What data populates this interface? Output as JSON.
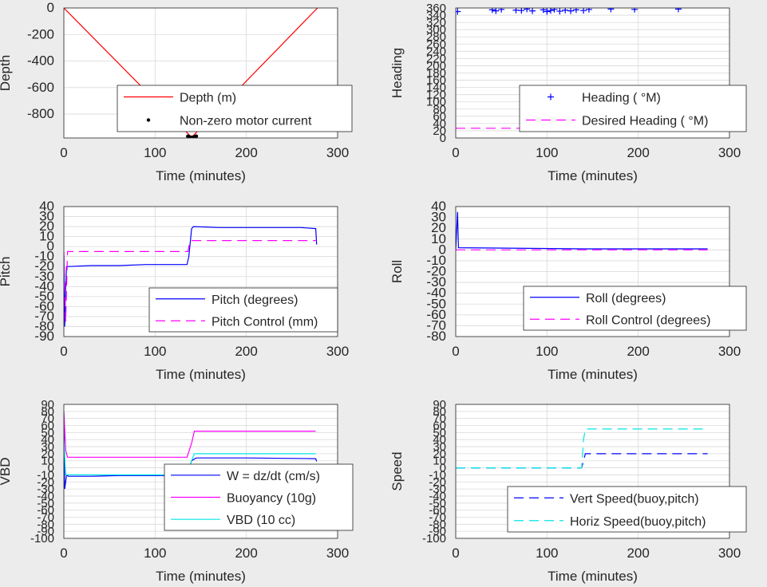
{
  "colors": {
    "figure_bg": "#ececec",
    "axes_bg": "#ffffff",
    "grid": "#d9d9d9",
    "text": "#262626"
  },
  "chart_data": [
    {
      "id": "depth",
      "type": "line",
      "ylabel": "Depth",
      "xlabel": "Time (minutes)",
      "xlim": [
        0,
        300
      ],
      "ylim": [
        -980,
        0
      ],
      "xticks": [
        0,
        100,
        200,
        300
      ],
      "yticks": [
        0,
        -200,
        -400,
        -600,
        -800
      ],
      "legend": "center-bottom",
      "series": [
        {
          "name": "Depth (m)",
          "color": "#ff0000",
          "style": "solid",
          "x": [
            0,
            140,
            278
          ],
          "y": [
            0,
            -975,
            0
          ]
        },
        {
          "name": "Non-zero motor current",
          "color": "#000000",
          "style": "dots",
          "x": [
            136,
            137,
            138,
            139,
            140,
            141,
            142,
            143,
            144,
            145
          ],
          "y": [
            -968,
            -972,
            -975,
            -978,
            -976,
            -979,
            -974,
            -977,
            -971,
            -967
          ]
        }
      ]
    },
    {
      "id": "heading",
      "type": "line",
      "ylabel": "Heading",
      "xlabel": "Time (minutes)",
      "xlim": [
        0,
        300
      ],
      "ylim": [
        0,
        360
      ],
      "xticks": [
        0,
        100,
        200,
        300
      ],
      "yticks": [
        0,
        20,
        40,
        60,
        80,
        100,
        120,
        140,
        160,
        180,
        200,
        220,
        240,
        260,
        280,
        300,
        320,
        340,
        360
      ],
      "legend": "center-right",
      "series": [
        {
          "name": "Heading (  °M)",
          "color": "#0000ff",
          "style": "plus",
          "x": [
            2,
            40,
            44,
            50,
            66,
            72,
            78,
            84,
            96,
            100,
            104,
            108,
            114,
            120,
            126,
            132,
            140,
            146,
            170,
            196,
            244
          ],
          "y": [
            350,
            355,
            352,
            356,
            354,
            353,
            357,
            352,
            355,
            350,
            353,
            356,
            351,
            354,
            352,
            355,
            353,
            356,
            357,
            356,
            357
          ]
        },
        {
          "name": "Desired Heading (  °M)",
          "color": "#ff00ff",
          "style": "dashed",
          "x": [
            0,
            278
          ],
          "y": [
            27,
            27
          ]
        }
      ]
    },
    {
      "id": "pitch",
      "type": "line",
      "ylabel": "Pitch",
      "xlabel": "Time (minutes)",
      "xlim": [
        0,
        300
      ],
      "ylim": [
        -90,
        40
      ],
      "xticks": [
        0,
        100,
        200,
        300
      ],
      "yticks": [
        40,
        30,
        20,
        10,
        0,
        -10,
        -20,
        -30,
        -40,
        -50,
        -60,
        -70,
        -80,
        -90
      ],
      "legend": "center-bottom",
      "series": [
        {
          "name": "Pitch (degrees)",
          "color": "#0000ff",
          "style": "solid",
          "x": [
            0,
            1,
            2,
            3,
            5,
            30,
            60,
            90,
            120,
            135,
            137,
            140,
            142,
            170,
            200,
            230,
            260,
            276,
            277
          ],
          "y": [
            -10,
            -80,
            -40,
            -20,
            -20,
            -19,
            -19,
            -18,
            -18,
            -18,
            -10,
            18,
            20,
            19,
            19,
            19,
            19,
            18,
            2
          ]
        },
        {
          "name": "Pitch Control (mm)",
          "color": "#ff00ff",
          "style": "dashed",
          "x": [
            0,
            2,
            4,
            10,
            136,
            138,
            140,
            276
          ],
          "y": [
            -5,
            -75,
            -5,
            -5,
            -5,
            5,
            6,
            6
          ]
        }
      ]
    },
    {
      "id": "roll",
      "type": "line",
      "ylabel": "Roll",
      "xlabel": "Time (minutes)",
      "xlim": [
        0,
        300
      ],
      "ylim": [
        -80,
        40
      ],
      "xticks": [
        0,
        100,
        200,
        300
      ],
      "yticks": [
        40,
        30,
        20,
        10,
        0,
        -10,
        -20,
        -30,
        -40,
        -50,
        -60,
        -70,
        -80
      ],
      "legend": "center-bottom",
      "series": [
        {
          "name": "Roll (degrees)",
          "color": "#0000ff",
          "style": "solid",
          "x": [
            0,
            2,
            3,
            140,
            276
          ],
          "y": [
            0,
            35,
            2,
            1,
            1
          ]
        },
        {
          "name": "Roll Control (degrees)",
          "color": "#ff00ff",
          "style": "dashed",
          "x": [
            0,
            276
          ],
          "y": [
            0,
            0
          ]
        }
      ]
    },
    {
      "id": "vbd",
      "type": "line",
      "ylabel": "VBD",
      "xlabel": "Time (minutes)",
      "xlim": [
        0,
        300
      ],
      "ylim": [
        -100,
        90
      ],
      "xticks": [
        0,
        100,
        200,
        300
      ],
      "yticks": [
        90,
        80,
        70,
        60,
        50,
        40,
        30,
        20,
        10,
        0,
        -10,
        -20,
        -30,
        -40,
        -50,
        -60,
        -70,
        -80,
        -90,
        -100
      ],
      "legend": "center-bottom",
      "series": [
        {
          "name": "W = dz/dt (cm/s)",
          "color": "#0000ff",
          "style": "solid",
          "x": [
            0,
            1,
            3,
            5,
            30,
            60,
            100,
            135,
            140,
            145,
            200,
            276,
            277
          ],
          "y": [
            60,
            -30,
            -10,
            -12,
            -12,
            -11,
            -11,
            -11,
            10,
            14,
            14,
            13,
            9
          ]
        },
        {
          "name": "Buoyancy (10g)",
          "color": "#ff00ff",
          "style": "solid",
          "x": [
            0,
            2,
            4,
            135,
            140,
            143,
            276
          ],
          "y": [
            80,
            25,
            15,
            15,
            35,
            52,
            52
          ]
        },
        {
          "name": "VBD (10 cc)",
          "color": "#00e5e5",
          "style": "solid",
          "x": [
            0,
            2,
            4,
            135,
            140,
            143,
            276
          ],
          "y": [
            40,
            -10,
            -10,
            -10,
            10,
            20,
            20
          ]
        }
      ]
    },
    {
      "id": "speed",
      "type": "line",
      "ylabel": "Speed",
      "xlabel": "Time (minutes)",
      "xlim": [
        0,
        300
      ],
      "ylim": [
        -100,
        90
      ],
      "xticks": [
        0,
        100,
        200,
        300
      ],
      "yticks": [
        90,
        80,
        70,
        60,
        50,
        40,
        30,
        20,
        10,
        0,
        -10,
        -20,
        -30,
        -40,
        -50,
        -60,
        -70,
        -80,
        -90,
        -100
      ],
      "legend": "center-bottom",
      "series": [
        {
          "name": "Vert Speed(buoy,pitch)",
          "color": "#0000ff",
          "style": "dashed",
          "x": [
            0,
            138,
            140,
            142,
            276
          ],
          "y": [
            0,
            0,
            10,
            20,
            20
          ]
        },
        {
          "name": "Horiz Speed(buoy,pitch)",
          "color": "#00e5e5",
          "style": "dashed",
          "x": [
            0,
            138,
            140,
            142,
            276
          ],
          "y": [
            0,
            0,
            40,
            55,
            55
          ]
        }
      ]
    }
  ]
}
